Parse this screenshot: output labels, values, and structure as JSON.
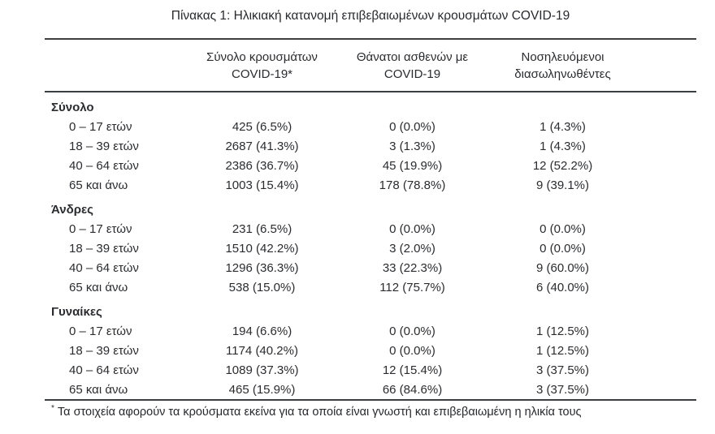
{
  "page": {
    "title": "Πίνακας 1: Ηλικιακή κατανομή επιβεβαιωμένων κρουσμάτων COVID-19"
  },
  "table": {
    "headers": {
      "cases": {
        "line1": "Σύνολο κρουσμάτων",
        "line2": "COVID-19*"
      },
      "deaths": {
        "line1": "Θάνατοι ασθενών με",
        "line2": "COVID-19"
      },
      "intubated": {
        "line1": "Νοσηλευόμενοι",
        "line2": "διασωληνωθέντες"
      }
    },
    "sections": [
      {
        "label": "Σύνολο",
        "rows": [
          {
            "age": "0 – 17 ετών",
            "cases": "425 (6.5%)",
            "deaths": "0 (0.0%)",
            "intubated": "1 (4.3%)"
          },
          {
            "age": "18 – 39 ετών",
            "cases": "2687 (41.3%)",
            "deaths": "3 (1.3%)",
            "intubated": "1 (4.3%)"
          },
          {
            "age": "40 – 64 ετών",
            "cases": "2386 (36.7%)",
            "deaths": "45 (19.9%)",
            "intubated": "12 (52.2%)"
          },
          {
            "age": "65 και άνω",
            "cases": "1003 (15.4%)",
            "deaths": "178 (78.8%)",
            "intubated": "9 (39.1%)"
          }
        ]
      },
      {
        "label": "Άνδρες",
        "rows": [
          {
            "age": "0 – 17 ετών",
            "cases": "231 (6.5%)",
            "deaths": "0 (0.0%)",
            "intubated": "0 (0.0%)"
          },
          {
            "age": "18 – 39 ετών",
            "cases": "1510 (42.2%)",
            "deaths": "3 (2.0%)",
            "intubated": "0 (0.0%)"
          },
          {
            "age": "40 – 64 ετών",
            "cases": "1296 (36.3%)",
            "deaths": "33 (22.3%)",
            "intubated": "9 (60.0%)"
          },
          {
            "age": "65 και άνω",
            "cases": "538 (15.0%)",
            "deaths": "112 (75.7%)",
            "intubated": "6 (40.0%)"
          }
        ]
      },
      {
        "label": "Γυναίκες",
        "rows": [
          {
            "age": "0 – 17 ετών",
            "cases": "194 (6.6%)",
            "deaths": "0 (0.0%)",
            "intubated": "1 (12.5%)"
          },
          {
            "age": "18 – 39 ετών",
            "cases": "1174 (40.2%)",
            "deaths": "0 (0.0%)",
            "intubated": "1 (12.5%)"
          },
          {
            "age": "40 – 64 ετών",
            "cases": "1089 (37.3%)",
            "deaths": "12 (15.4%)",
            "intubated": "3 (37.5%)"
          },
          {
            "age": "65 και άνω",
            "cases": "465 (15.9%)",
            "deaths": "66 (84.6%)",
            "intubated": "3 (37.5%)"
          }
        ]
      }
    ],
    "footnote": {
      "marker": "*",
      "text": "Τα στοιχεία αφορούν τα κρούσματα εκείνα για τα οποία είναι γνωστή και επιβεβαιωμένη η ηλικία τους"
    }
  },
  "colors": {
    "text": "#27292c",
    "rule": "#3c3f42",
    "background": "#ffffff"
  }
}
